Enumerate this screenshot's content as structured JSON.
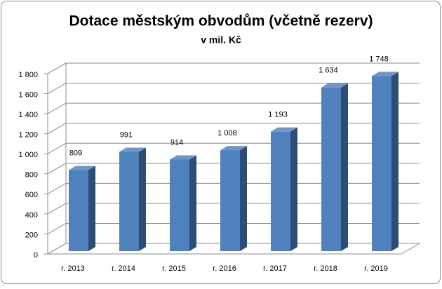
{
  "chart_data": {
    "type": "bar3d",
    "title": "Dotace městským obvodům (včetně rezerv)",
    "subtitle": "v mil. Kč",
    "categories": [
      "r. 2013",
      "r. 2014",
      "r. 2015",
      "r. 2016",
      "r. 2017",
      "r. 2018",
      "r. 2019"
    ],
    "values": [
      809,
      991,
      914,
      1008,
      1193,
      1634,
      1748
    ],
    "value_labels": [
      "809",
      "991",
      "914",
      "1 008",
      "1 193",
      "1 634",
      "1 748"
    ],
    "color": "#4f81bd",
    "ylim": [
      0,
      1800
    ],
    "yticks": [
      0,
      200,
      400,
      600,
      800,
      {
        "value": 1000,
        "label": "1 000"
      },
      {
        "value": 1200,
        "label": "1 200"
      },
      {
        "value": 1400,
        "label": "1 400"
      },
      {
        "value": 1600,
        "label": "1 600"
      },
      {
        "value": 1800,
        "label": "1 800"
      }
    ],
    "grid": true
  }
}
